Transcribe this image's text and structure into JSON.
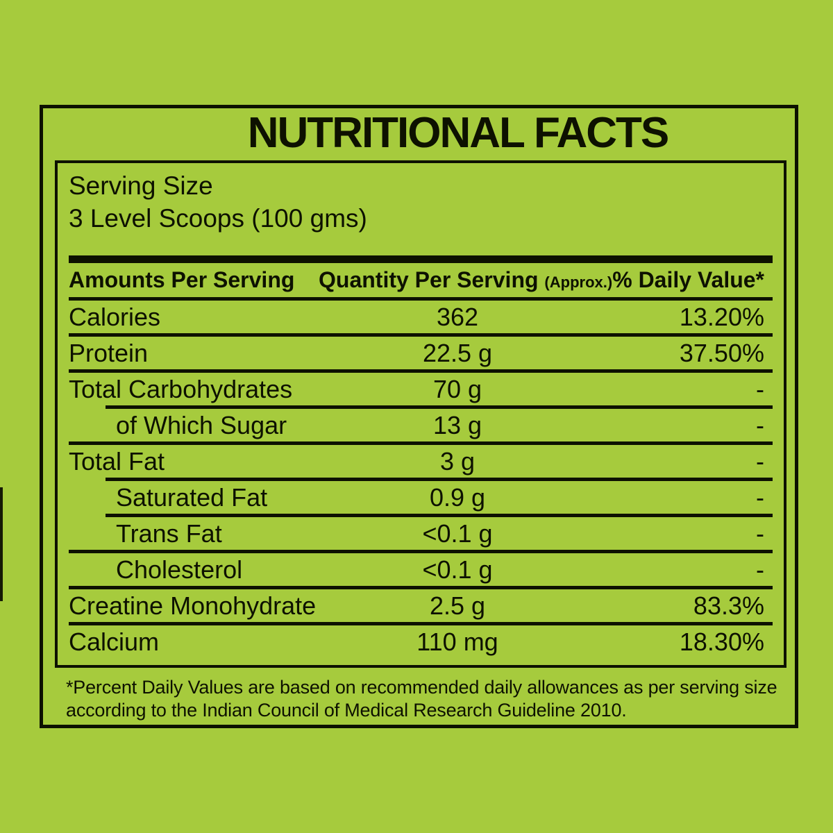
{
  "colors": {
    "background": "#a6cb3d",
    "ink": "#0d1100"
  },
  "title": "NUTRITIONAL FACTS",
  "serving": {
    "label": "Serving Size",
    "value": "3 Level Scoops (100 gms)"
  },
  "table": {
    "headers": {
      "amounts": "Amounts Per Serving",
      "quantity": "Quantity Per Serving",
      "quantity_note": "(Approx.)",
      "daily_value": "% Daily Value*"
    },
    "rows": [
      {
        "label": "Calories",
        "quantity": "362",
        "daily_value": "13.20%",
        "indent": false,
        "rule": "full"
      },
      {
        "label": "Protein",
        "quantity": "22.5 g",
        "daily_value": "37.50%",
        "indent": false,
        "rule": "full"
      },
      {
        "label": "Total Carbohydrates",
        "quantity": "70 g",
        "daily_value": "-",
        "indent": false,
        "rule": "indent"
      },
      {
        "label": "of Which Sugar",
        "quantity": "13 g",
        "daily_value": "-",
        "indent": true,
        "rule": "full"
      },
      {
        "label": "Total Fat",
        "quantity": "3 g",
        "daily_value": "-",
        "indent": false,
        "rule": "indent"
      },
      {
        "label": "Saturated Fat",
        "quantity": "0.9 g",
        "daily_value": "-",
        "indent": true,
        "rule": "indent"
      },
      {
        "label": "Trans Fat",
        "quantity": "<0.1 g",
        "daily_value": "-",
        "indent": true,
        "rule": "full"
      },
      {
        "label": "Cholesterol",
        "quantity": "<0.1 g",
        "daily_value": "-",
        "indent": true,
        "rule": "full"
      },
      {
        "label": "Creatine Monohydrate",
        "quantity": "2.5 g",
        "daily_value": "83.3%",
        "indent": false,
        "rule": "full"
      },
      {
        "label": "Calcium",
        "quantity": "110 mg",
        "daily_value": "18.30%",
        "indent": false,
        "rule": "none"
      }
    ]
  },
  "footnote": {
    "line1": "*Percent Daily Values are based on recommended daily allowances as per serving size",
    "line2": "according to the Indian Council of Medical Research Guideline 2010."
  }
}
